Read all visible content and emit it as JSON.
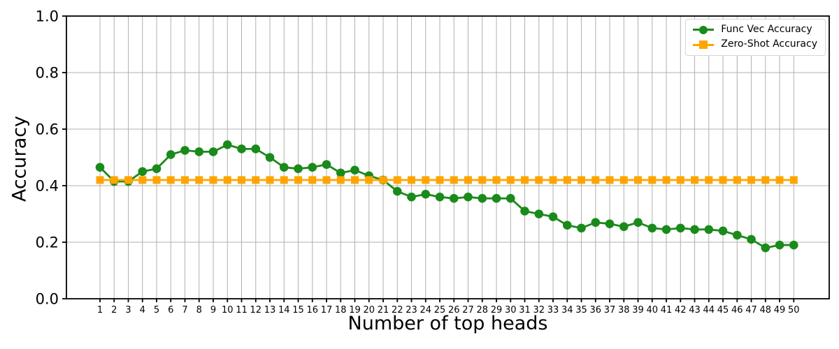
{
  "chart_data": {
    "type": "line",
    "title": "",
    "xlabel": "Number of top heads",
    "ylabel": "Accuracy",
    "x": [
      1,
      2,
      3,
      4,
      5,
      6,
      7,
      8,
      9,
      10,
      11,
      12,
      13,
      14,
      15,
      16,
      17,
      18,
      19,
      20,
      21,
      22,
      23,
      24,
      25,
      26,
      27,
      28,
      29,
      30,
      31,
      32,
      33,
      34,
      35,
      36,
      37,
      38,
      39,
      40,
      41,
      42,
      43,
      44,
      45,
      46,
      47,
      48,
      49,
      50
    ],
    "ylim": [
      0.0,
      1.0
    ],
    "yticks": [
      0.0,
      0.2,
      0.4,
      0.6,
      0.8,
      1.0
    ],
    "grid": true,
    "legend_position": "upper right",
    "colors": {
      "func_vec": "#1a8a1a",
      "zero_shot": "#ffa500",
      "gridline": "#b0b0b0",
      "spine": "#000000"
    },
    "series": [
      {
        "name": "Func Vec Accuracy",
        "color": "#1a8a1a",
        "marker": "circle",
        "values": [
          0.465,
          0.415,
          0.415,
          0.45,
          0.46,
          0.51,
          0.525,
          0.52,
          0.52,
          0.545,
          0.53,
          0.53,
          0.5,
          0.465,
          0.46,
          0.465,
          0.475,
          0.445,
          0.455,
          0.435,
          0.42,
          0.38,
          0.36,
          0.37,
          0.36,
          0.355,
          0.36,
          0.355,
          0.355,
          0.355,
          0.31,
          0.3,
          0.29,
          0.26,
          0.25,
          0.27,
          0.265,
          0.255,
          0.27,
          0.25,
          0.245,
          0.25,
          0.245,
          0.245,
          0.24,
          0.225,
          0.21,
          0.18,
          0.19,
          0.19
        ]
      },
      {
        "name": "Zero-Shot Accuracy",
        "color": "#ffa500",
        "marker": "square",
        "values": [
          0.42,
          0.42,
          0.42,
          0.42,
          0.42,
          0.42,
          0.42,
          0.42,
          0.42,
          0.42,
          0.42,
          0.42,
          0.42,
          0.42,
          0.42,
          0.42,
          0.42,
          0.42,
          0.42,
          0.42,
          0.42,
          0.42,
          0.42,
          0.42,
          0.42,
          0.42,
          0.42,
          0.42,
          0.42,
          0.42,
          0.42,
          0.42,
          0.42,
          0.42,
          0.42,
          0.42,
          0.42,
          0.42,
          0.42,
          0.42,
          0.42,
          0.42,
          0.42,
          0.42,
          0.42,
          0.42,
          0.42,
          0.42,
          0.42,
          0.42
        ]
      }
    ]
  }
}
